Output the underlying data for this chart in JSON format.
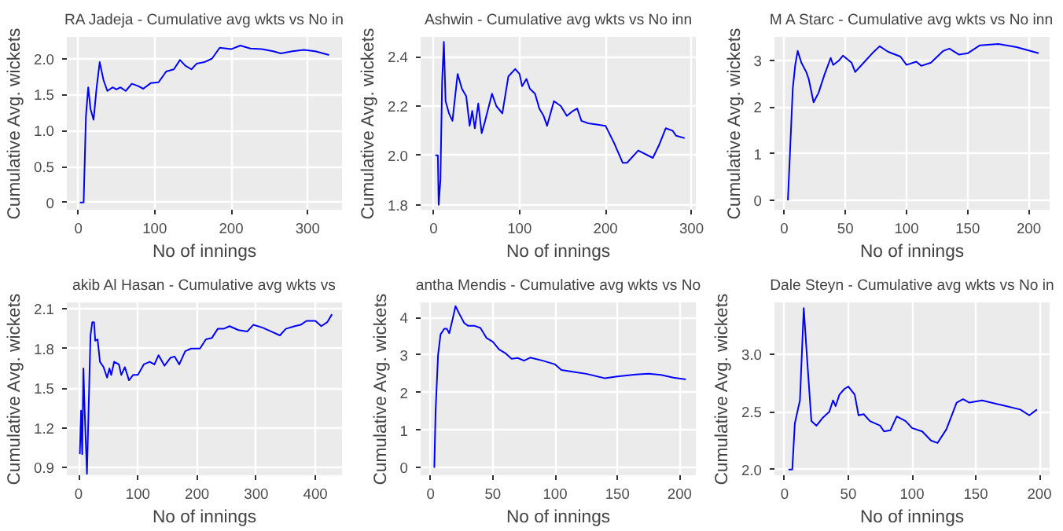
{
  "chart_data": [
    {
      "type": "line",
      "title": "RA Jadeja - Cumulative avg wkts vs No in",
      "xlabel": "No of innings",
      "ylabel": "Cumulative Avg. wickets",
      "grid": true,
      "xlim": [
        -15,
        345
      ],
      "ylim": [
        -0.1,
        2.3
      ],
      "xticks": [
        0,
        100,
        200,
        300
      ],
      "yticks": [
        0,
        {
          "value": 0.5,
          "label": "0.5"
        },
        {
          "value": 1,
          "label": "1.0"
        },
        {
          "value": 1.5,
          "label": "1.5"
        },
        {
          "value": 2,
          "label": "2.0"
        }
      ],
      "series": [
        {
          "color": "#0000ff",
          "x": [
            2,
            7,
            10,
            13,
            16,
            20,
            24,
            28,
            33,
            38,
            45,
            50,
            55,
            62,
            70,
            78,
            85,
            95,
            105,
            115,
            125,
            133,
            140,
            148,
            155,
            165,
            175,
            185,
            200,
            212,
            225,
            240,
            255,
            265,
            280,
            295,
            310,
            328
          ],
          "values": [
            0,
            0,
            1.2,
            1.6,
            1.3,
            1.15,
            1.6,
            1.95,
            1.7,
            1.55,
            1.6,
            1.57,
            1.6,
            1.55,
            1.65,
            1.62,
            1.58,
            1.66,
            1.67,
            1.82,
            1.85,
            1.98,
            1.9,
            1.85,
            1.93,
            1.95,
            2.0,
            2.15,
            2.13,
            2.18,
            2.14,
            2.13,
            2.1,
            2.07,
            2.1,
            2.12,
            2.1,
            2.05
          ]
        }
      ]
    },
    {
      "type": "line",
      "title": "Ashwin - Cumulative avg wkts vs No inn",
      "xlabel": "No of innings",
      "ylabel": "Cumulative Avg. wickets",
      "grid": true,
      "xlim": [
        -15,
        305
      ],
      "ylim": [
        1.78,
        2.48
      ],
      "xticks": [
        0,
        100,
        200,
        300
      ],
      "yticks": [
        {
          "value": 1.8,
          "label": "1.8"
        },
        {
          "value": 2.0,
          "label": "2.0"
        },
        {
          "value": 2.2,
          "label": "2.2"
        },
        {
          "value": 2.4,
          "label": "2.4"
        }
      ],
      "series": [
        {
          "color": "#0000ff",
          "x": [
            2,
            5,
            6,
            8,
            10,
            12,
            14,
            18,
            22,
            28,
            33,
            38,
            42,
            45,
            48,
            52,
            56,
            60,
            68,
            73,
            80,
            87,
            95,
            100,
            103,
            108,
            112,
            118,
            123,
            128,
            132,
            140,
            148,
            155,
            162,
            167,
            172,
            180,
            200,
            210,
            220,
            225,
            238,
            255,
            262,
            270,
            278,
            282,
            292
          ],
          "values": [
            2.0,
            2.0,
            1.8,
            1.9,
            2.3,
            2.46,
            2.22,
            2.17,
            2.14,
            2.33,
            2.27,
            2.24,
            2.12,
            2.18,
            2.11,
            2.21,
            2.09,
            2.14,
            2.25,
            2.2,
            2.17,
            2.32,
            2.35,
            2.33,
            2.28,
            2.31,
            2.27,
            2.25,
            2.19,
            2.16,
            2.12,
            2.22,
            2.2,
            2.16,
            2.18,
            2.19,
            2.14,
            2.13,
            2.12,
            2.05,
            1.97,
            1.97,
            2.02,
            1.99,
            2.04,
            2.11,
            2.1,
            2.08,
            2.07
          ]
        }
      ]
    },
    {
      "type": "line",
      "title": "M A Starc - Cumulative avg wkts vs No inn",
      "xlabel": "No of innings",
      "ylabel": "Cumulative Avg. wickets",
      "grid": true,
      "xlim": [
        -8,
        217
      ],
      "ylim": [
        -0.2,
        3.5
      ],
      "xticks": [
        0,
        50,
        100,
        150,
        200
      ],
      "yticks": [
        0,
        1,
        2,
        3
      ],
      "series": [
        {
          "color": "#0000ff",
          "x": [
            3,
            5,
            7,
            9,
            11,
            14,
            18,
            20,
            24,
            28,
            33,
            38,
            40,
            45,
            48,
            55,
            58,
            65,
            72,
            78,
            85,
            95,
            100,
            108,
            112,
            120,
            130,
            135,
            143,
            150,
            160,
            175,
            190,
            208
          ],
          "values": [
            0,
            1.2,
            2.4,
            2.9,
            3.2,
            2.95,
            2.75,
            2.6,
            2.1,
            2.3,
            2.7,
            3.05,
            2.9,
            3.0,
            3.1,
            2.95,
            2.75,
            2.95,
            3.15,
            3.3,
            3.18,
            3.08,
            2.9,
            2.97,
            2.88,
            2.95,
            3.2,
            3.25,
            3.12,
            3.15,
            3.32,
            3.35,
            3.28,
            3.15
          ]
        }
      ]
    },
    {
      "type": "line",
      "title": "akib Al Hasan - Cumulative avg wkts vs",
      "xlabel": "No of innings",
      "ylabel": "Cumulative Avg. wickets",
      "grid": true,
      "xlim": [
        -20,
        445
      ],
      "ylim": [
        0.84,
        2.15
      ],
      "xticks": [
        0,
        100,
        200,
        300,
        400
      ],
      "yticks": [
        {
          "value": 0.9,
          "label": "0.9"
        },
        {
          "value": 1.2,
          "label": "1.2"
        },
        {
          "value": 1.5,
          "label": "1.5"
        },
        {
          "value": 1.8,
          "label": "1.8"
        },
        {
          "value": 2.1,
          "label": "2.1"
        }
      ],
      "series": [
        {
          "color": "#0000ff",
          "x": [
            2,
            4,
            6,
            8,
            10,
            12,
            14,
            16,
            18,
            20,
            23,
            26,
            28,
            32,
            36,
            42,
            48,
            52,
            55,
            60,
            68,
            72,
            78,
            85,
            92,
            100,
            110,
            120,
            128,
            135,
            145,
            155,
            162,
            170,
            180,
            190,
            200,
            205,
            215,
            225,
            235,
            245,
            255,
            270,
            285,
            295,
            310,
            325,
            340,
            350,
            365,
            375,
            385,
            400,
            410,
            420,
            428
          ],
          "values": [
            1.0,
            1.33,
            1.0,
            1.65,
            1.35,
            1.1,
            0.85,
            1.2,
            1.55,
            1.9,
            2.0,
            2.0,
            1.86,
            1.87,
            1.7,
            1.66,
            1.58,
            1.65,
            1.6,
            1.7,
            1.68,
            1.6,
            1.66,
            1.56,
            1.6,
            1.6,
            1.68,
            1.7,
            1.68,
            1.75,
            1.67,
            1.73,
            1.74,
            1.68,
            1.78,
            1.8,
            1.8,
            1.8,
            1.87,
            1.88,
            1.95,
            1.95,
            1.97,
            1.94,
            1.93,
            1.98,
            1.96,
            1.93,
            1.9,
            1.95,
            1.97,
            1.98,
            2.01,
            2.01,
            1.97,
            2.0,
            2.06
          ]
        }
      ]
    },
    {
      "type": "line",
      "title": "antha Mendis - Cumulative avg wkts vs No",
      "xlabel": "No of innings",
      "ylabel": "Cumulative Avg. wickets",
      "grid": true,
      "xlim": [
        -8,
        213
      ],
      "ylim": [
        -0.2,
        4.4
      ],
      "xticks": [
        0,
        50,
        100,
        150,
        200
      ],
      "yticks": [
        0,
        1,
        2,
        3,
        4
      ],
      "series": [
        {
          "color": "#0000ff",
          "x": [
            3,
            4,
            6,
            8,
            11,
            13,
            15,
            18,
            20,
            23,
            27,
            30,
            35,
            40,
            45,
            50,
            55,
            60,
            65,
            70,
            75,
            80,
            90,
            100,
            105,
            115,
            125,
            140,
            150,
            165,
            175,
            185,
            195,
            205
          ],
          "values": [
            0,
            1.5,
            3.0,
            3.55,
            3.7,
            3.7,
            3.58,
            4.0,
            4.3,
            4.1,
            3.85,
            3.78,
            3.78,
            3.72,
            3.45,
            3.35,
            3.15,
            3.05,
            2.9,
            2.92,
            2.85,
            2.93,
            2.85,
            2.75,
            2.6,
            2.55,
            2.5,
            2.38,
            2.43,
            2.48,
            2.5,
            2.47,
            2.4,
            2.35
          ]
        }
      ]
    },
    {
      "type": "line",
      "title": "Dale Steyn - Cumulative avg wkts vs No in",
      "xlabel": "No of innings",
      "ylabel": "Cumulative Avg. wickets",
      "grid": true,
      "xlim": [
        -8,
        208
      ],
      "ylim": [
        1.95,
        3.45
      ],
      "xticks": [
        0,
        50,
        100,
        150,
        200
      ],
      "yticks": [
        {
          "value": 2.0,
          "label": "2.0"
        },
        {
          "value": 2.5,
          "label": "2.5"
        },
        {
          "value": 3.0,
          "label": "3.0"
        }
      ],
      "series": [
        {
          "color": "#0000ff",
          "x": [
            3,
            6,
            8,
            12,
            15,
            18,
            21,
            25,
            30,
            35,
            38,
            40,
            43,
            47,
            50,
            55,
            58,
            62,
            67,
            75,
            78,
            83,
            88,
            95,
            100,
            108,
            115,
            120,
            127,
            135,
            140,
            145,
            155,
            170,
            185,
            192,
            198
          ],
          "values": [
            2.0,
            2.0,
            2.4,
            2.6,
            3.4,
            2.9,
            2.42,
            2.38,
            2.45,
            2.5,
            2.6,
            2.55,
            2.65,
            2.7,
            2.72,
            2.65,
            2.47,
            2.48,
            2.42,
            2.38,
            2.33,
            2.34,
            2.46,
            2.42,
            2.36,
            2.33,
            2.25,
            2.23,
            2.35,
            2.58,
            2.61,
            2.58,
            2.6,
            2.56,
            2.52,
            2.47,
            2.52
          ]
        }
      ]
    }
  ]
}
